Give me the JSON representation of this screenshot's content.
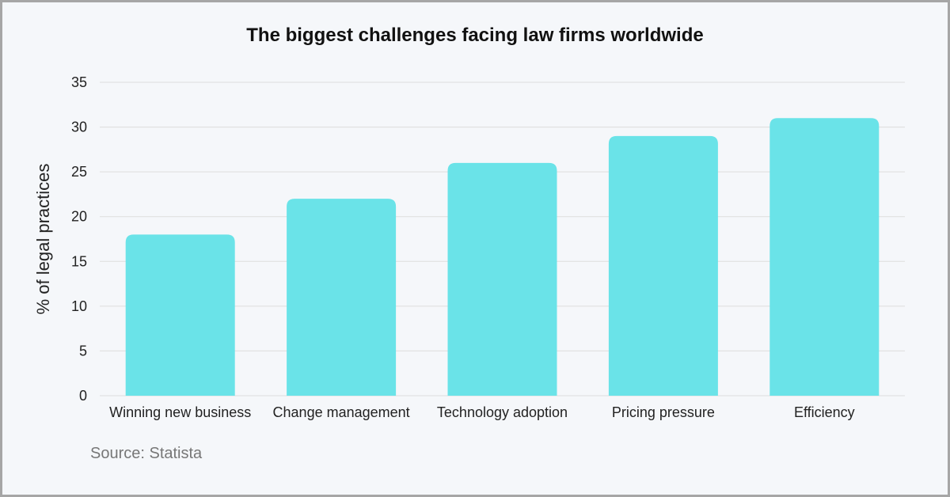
{
  "chart_data": {
    "type": "bar",
    "title": "The biggest challenges facing law firms worldwide",
    "xlabel": "",
    "ylabel": "% of legal practices",
    "categories": [
      "Winning new business",
      "Change management",
      "Technology adoption",
      "Pricing pressure",
      "Efficiency"
    ],
    "values": [
      18,
      22,
      26,
      29,
      31
    ],
    "ylim": [
      0,
      35
    ],
    "yticks": [
      0,
      5,
      10,
      15,
      20,
      25,
      30,
      35
    ],
    "grid": true,
    "bar_color": "#6ae3e8",
    "grid_color": "#dddddd"
  },
  "source": "Source: Statista"
}
